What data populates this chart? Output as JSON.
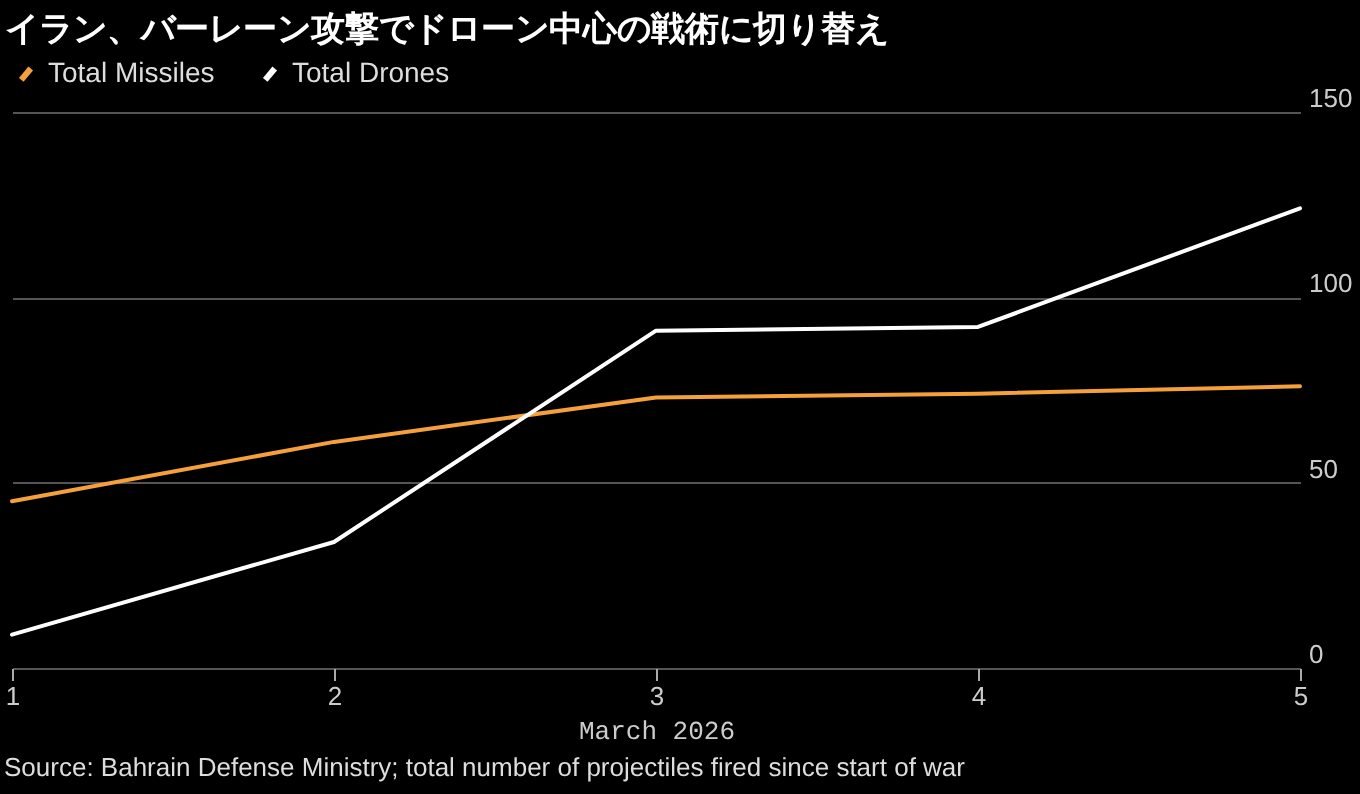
{
  "chart_data": {
    "type": "line",
    "title": "イラン、バーレーン攻撃でドローン中心の戦術に切り替え",
    "xlabel": "March 2026",
    "x": [
      1,
      2,
      3,
      4,
      5
    ],
    "xlim": [
      1,
      5
    ],
    "xticks": [
      1,
      2,
      3,
      4,
      5
    ],
    "ylim": [
      0,
      150
    ],
    "yticks": [
      0,
      50,
      100,
      150
    ],
    "series": [
      {
        "name": "Total Missiles",
        "color": "#f5a03a",
        "values": [
          45,
          61,
          73,
          74,
          76
        ]
      },
      {
        "name": "Total Drones",
        "color": "#ffffff",
        "values": [
          9,
          34,
          91,
          92,
          124
        ]
      }
    ],
    "grid": "y",
    "legend": "top left",
    "marker": "none",
    "line_style": "solid",
    "annotations": [
      "Source: Bahrain Defense Ministry; total number of projectiles fired since start of war"
    ]
  }
}
